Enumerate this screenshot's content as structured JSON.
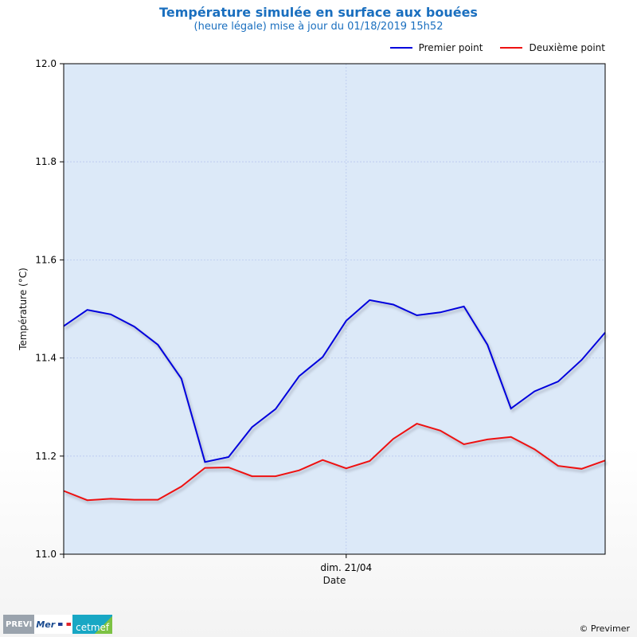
{
  "chart_data": {
    "type": "line",
    "title": "Température simulée en surface aux bouées",
    "subtitle": "(heure légale) mise à jour du 01/18/2019 15h52",
    "xlabel": "Date",
    "ylabel": "Température (°C)",
    "ylim": [
      11.0,
      12.0
    ],
    "yticks": [
      11.0,
      11.2,
      11.4,
      11.6,
      11.8,
      12.0
    ],
    "ytick_labels": [
      "11.0",
      "11.2",
      "11.4",
      "11.6",
      "11.8",
      "12.0"
    ],
    "x": [
      0,
      1,
      2,
      3,
      4,
      5,
      6,
      7,
      8,
      9,
      10,
      11,
      12,
      13,
      14,
      15,
      16,
      17,
      18,
      19,
      20,
      21,
      22,
      23
    ],
    "xlim": [
      0,
      23
    ],
    "xticks": [
      {
        "x": 12,
        "label": "dim. 21/04"
      }
    ],
    "grid": true,
    "legend_position": "top-right",
    "series": [
      {
        "name": "Premier point",
        "color": "#0000dd",
        "values": [
          11.465,
          11.498,
          11.489,
          11.464,
          11.427,
          11.358,
          11.188,
          11.198,
          11.259,
          11.296,
          11.363,
          11.402,
          11.476,
          11.518,
          11.509,
          11.487,
          11.493,
          11.505,
          11.427,
          11.297,
          11.332,
          11.352,
          11.396,
          11.452
        ]
      },
      {
        "name": "Deuxième point",
        "color": "#ee1111",
        "values": [
          11.129,
          11.11,
          11.113,
          11.111,
          11.111,
          11.138,
          11.176,
          11.177,
          11.159,
          11.159,
          11.171,
          11.192,
          11.175,
          11.19,
          11.235,
          11.266,
          11.252,
          11.224,
          11.234,
          11.239,
          11.214,
          11.18,
          11.174,
          11.191
        ]
      }
    ]
  },
  "plot_background": "#dce9f8",
  "footer": {
    "logo_previ": "PREVI",
    "logo_mer": "Mer",
    "logo_cetmef": "cetmef",
    "copyright": "© Previmer"
  }
}
